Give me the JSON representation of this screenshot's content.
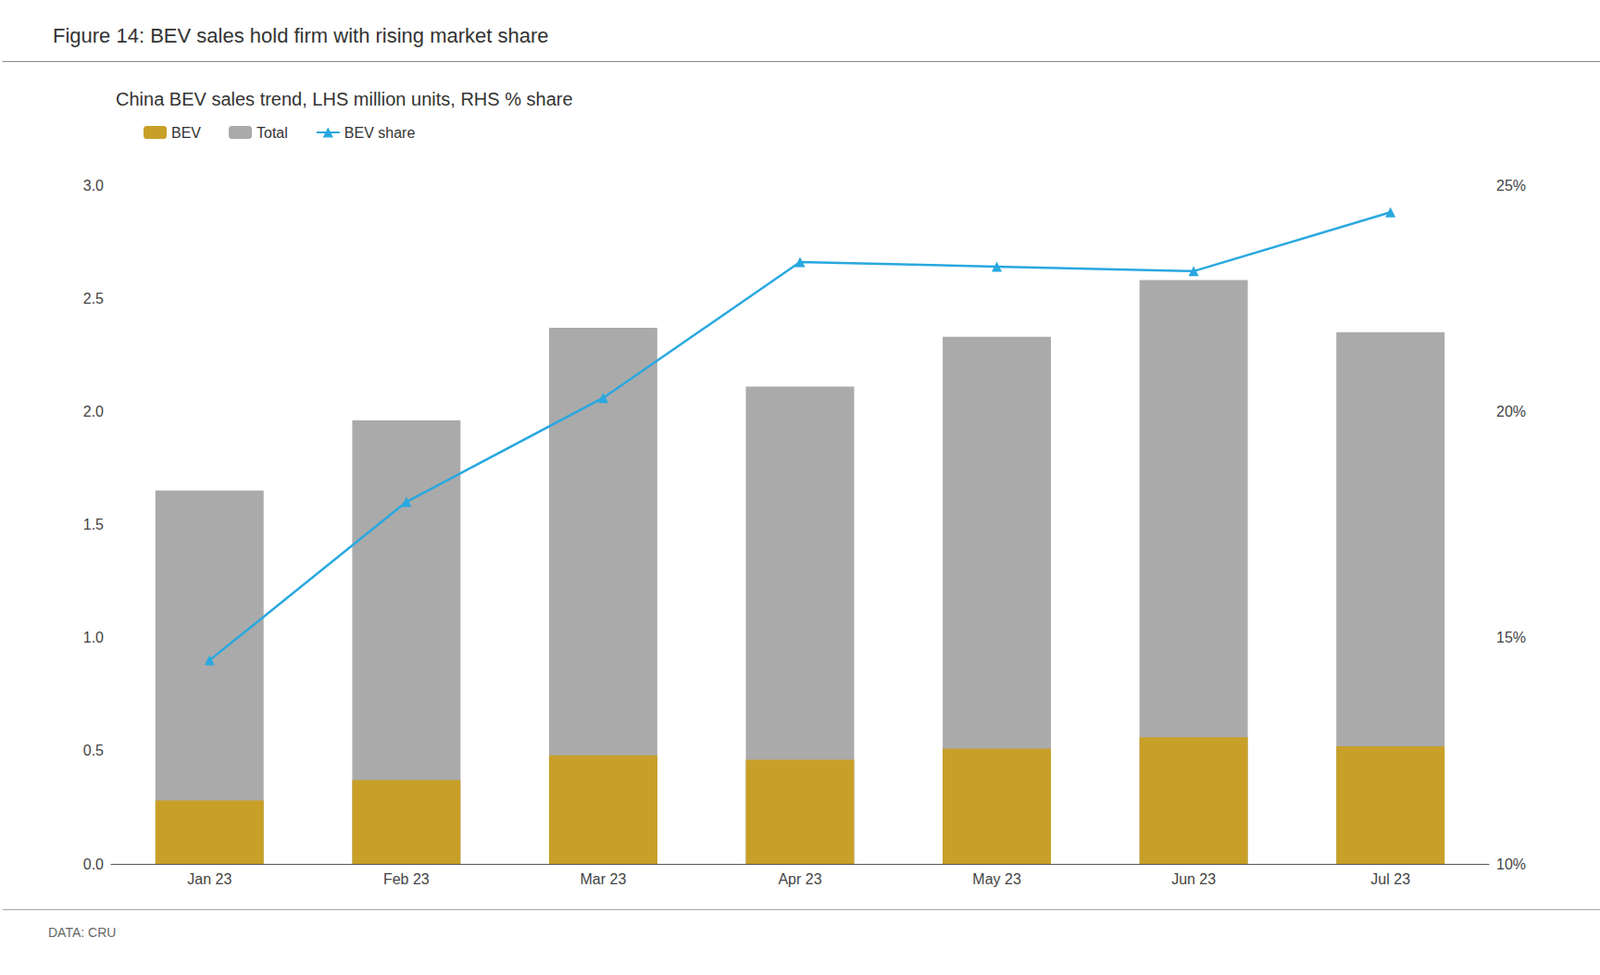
{
  "chart_data": {
    "type": "bar",
    "title": "Figure 14: BEV sales hold firm with rising market share",
    "subtitle": "China BEV sales trend, LHS million units, RHS % share",
    "annotations": [
      "DATA: CRU"
    ],
    "categories": [
      "Jan 23",
      "Feb 23",
      "Mar 23",
      "Apr 23",
      "May 23",
      "Jun 23",
      "Jul 23"
    ],
    "series": [
      {
        "name": "BEV",
        "type": "bar",
        "color": "#C8A028",
        "values": [
          0.28,
          0.37,
          0.48,
          0.46,
          0.51,
          0.56,
          0.52
        ]
      },
      {
        "name": "Total",
        "type": "bar",
        "color": "#AAAAAA",
        "values": [
          1.65,
          1.96,
          2.37,
          2.11,
          2.33,
          2.58,
          2.35
        ]
      },
      {
        "name": "BEV share",
        "type": "line",
        "axis": "y2",
        "color": "#29A8E0",
        "marker": "triangle",
        "line_style": "solid",
        "values": [
          14.5,
          18.0,
          20.3,
          23.3,
          23.2,
          23.1,
          24.4
        ]
      }
    ],
    "ylim": [
      0.0,
      3.0
    ],
    "yticks": [
      {
        "value": 0,
        "label": "0.0"
      },
      0.5,
      {
        "value": 1,
        "label": "1.0"
      },
      1.5,
      {
        "value": 2,
        "label": "2.0"
      },
      2.5,
      {
        "value": 3,
        "label": "3.0"
      }
    ],
    "y2lim": [
      10,
      25
    ],
    "y2ticks": [
      {
        "value": 10,
        "label": "10%"
      },
      {
        "value": 15,
        "label": "15%"
      },
      {
        "value": 20,
        "label": "20%"
      },
      {
        "value": 25,
        "label": "25%"
      }
    ],
    "grid": false,
    "legend": "upper left"
  }
}
